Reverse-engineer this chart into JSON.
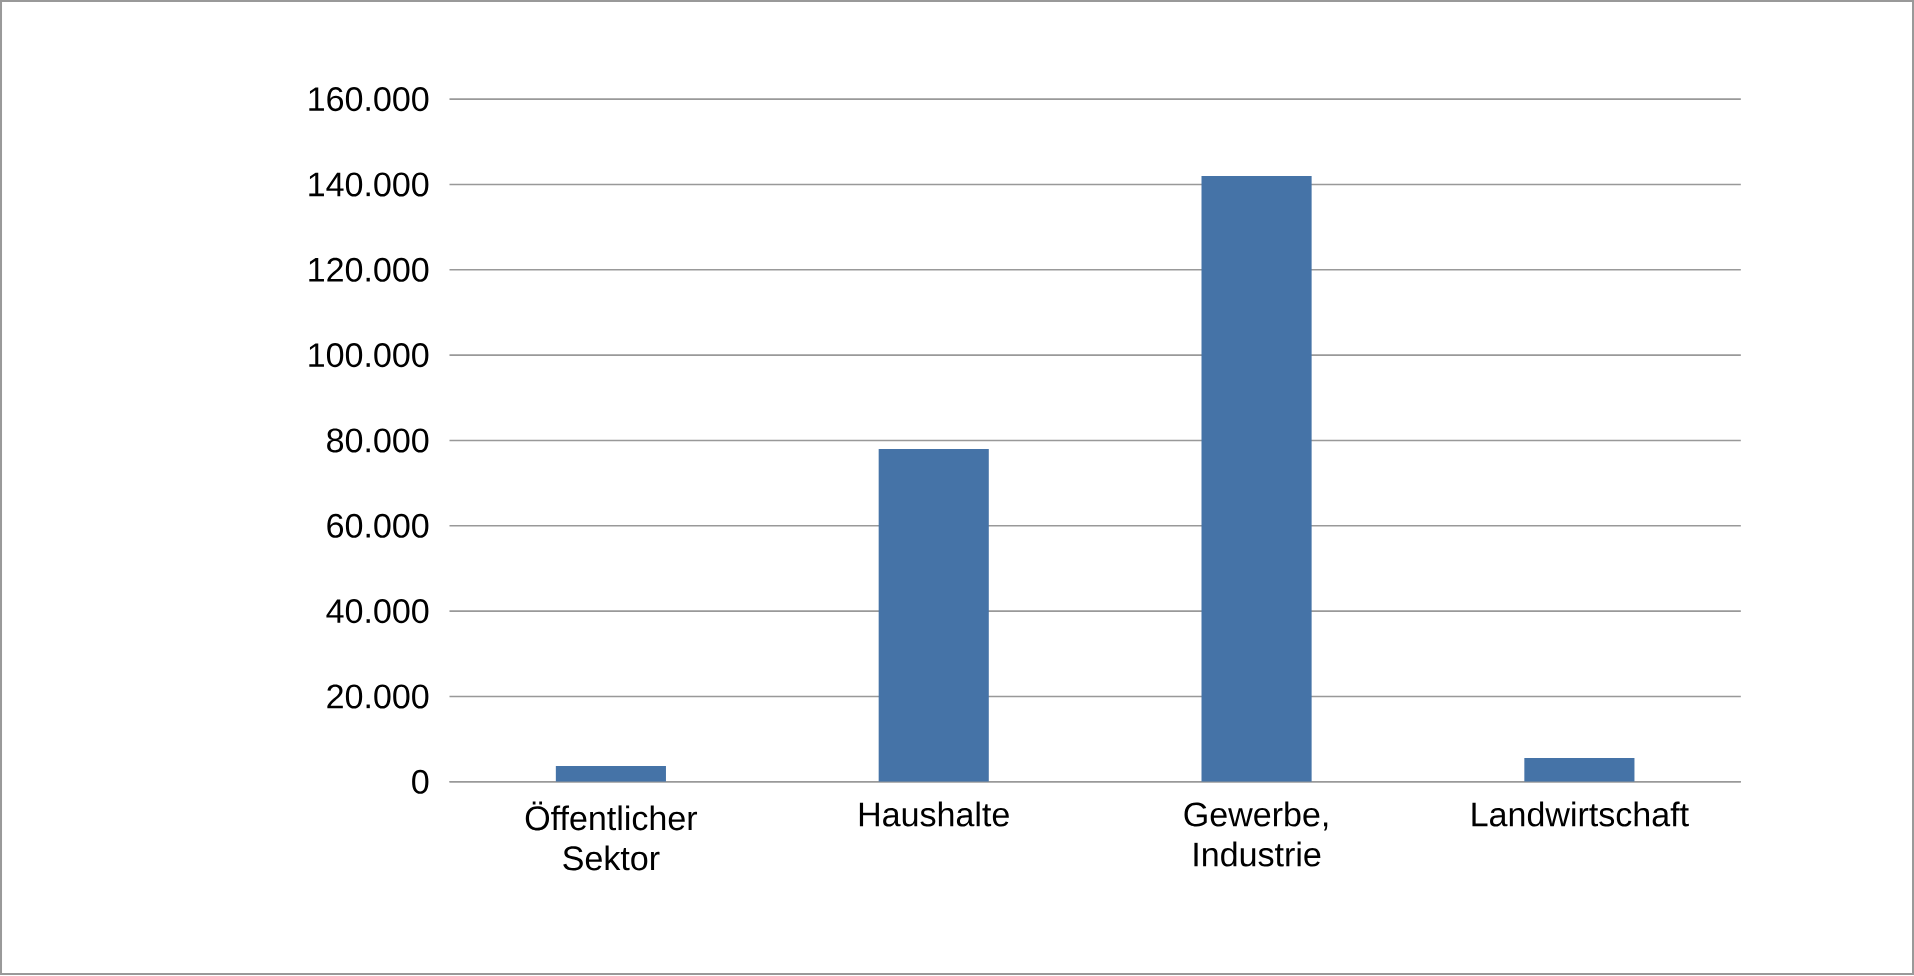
{
  "chart_data": {
    "type": "bar",
    "categories": [
      "Öffentlicher Sektor",
      "Haushalte",
      "Gewerbe, Industrie",
      "Landwirtschaft"
    ],
    "values": [
      3700,
      78000,
      142000,
      5600
    ],
    "color": "#4573a7",
    "ylim": [
      0,
      160000
    ],
    "yticks": [
      0,
      {
        "value": 20000,
        "label": "20.000"
      },
      {
        "value": 40000,
        "label": "40.000"
      },
      {
        "value": 60000,
        "label": "60.000"
      },
      {
        "value": 80000,
        "label": "80.000"
      },
      {
        "value": 100000,
        "label": "100.000"
      },
      {
        "value": 120000,
        "label": "120.000"
      },
      {
        "value": 140000,
        "label": "140.000"
      },
      {
        "value": 160000,
        "label": "160.000"
      }
    ],
    "grid": "y"
  }
}
